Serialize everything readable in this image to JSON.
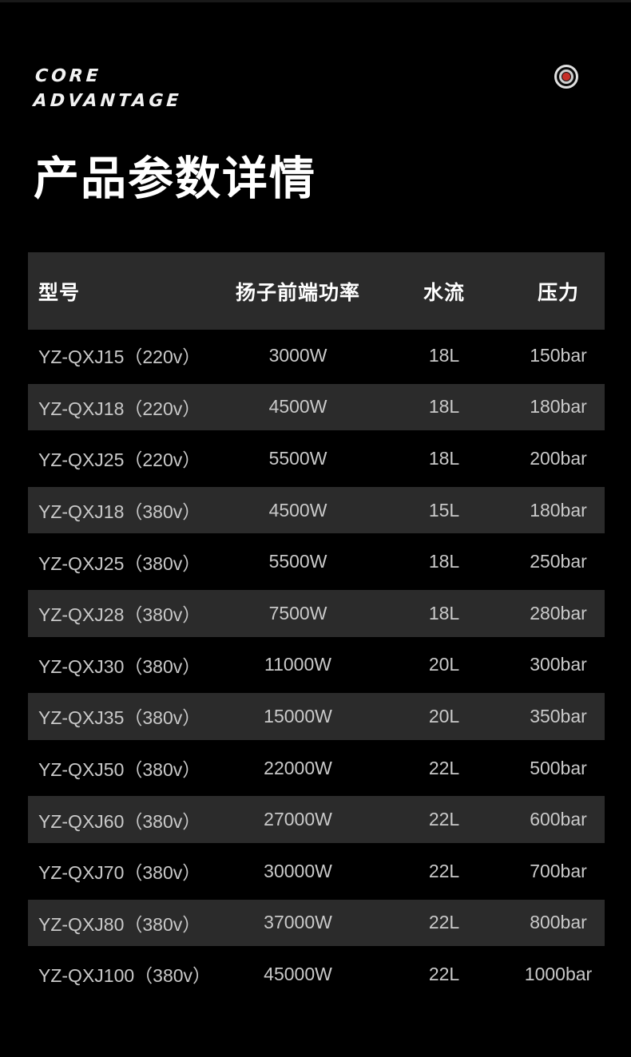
{
  "brand": {
    "line1": "CORE",
    "line2": "ADVANTAGE"
  },
  "header": {
    "title": "产品参数详情"
  },
  "icon": {
    "name": "record-lens-icon",
    "core_color": "#c62f28",
    "ring_color": "#e0e0e0"
  },
  "colors": {
    "page_bg": "#000000",
    "row_alt_bg": "#2b2b2b",
    "header_text": "#ffffff",
    "cell_text": "#c9c9c9",
    "accent_red": "#c62f28"
  },
  "table": {
    "headers": [
      "型号",
      "扬子前端功率",
      "水流",
      "压力"
    ],
    "rows": [
      [
        "YZ-QXJ15（220v）",
        "3000W",
        "18L",
        "150bar"
      ],
      [
        "YZ-QXJ18（220v）",
        "4500W",
        "18L",
        "180bar"
      ],
      [
        "YZ-QXJ25（220v）",
        "5500W",
        "18L",
        "200bar"
      ],
      [
        "YZ-QXJ18（380v）",
        "4500W",
        "15L",
        "180bar"
      ],
      [
        "YZ-QXJ25（380v）",
        "5500W",
        "18L",
        "250bar"
      ],
      [
        "YZ-QXJ28（380v）",
        "7500W",
        "18L",
        "280bar"
      ],
      [
        "YZ-QXJ30（380v）",
        "11000W",
        "20L",
        "300bar"
      ],
      [
        "YZ-QXJ35（380v）",
        "15000W",
        "20L",
        "350bar"
      ],
      [
        "YZ-QXJ50（380v）",
        "22000W",
        "22L",
        "500bar"
      ],
      [
        "YZ-QXJ60（380v）",
        "27000W",
        "22L",
        "600bar"
      ],
      [
        "YZ-QXJ70（380v）",
        "30000W",
        "22L",
        "700bar"
      ],
      [
        "YZ-QXJ80（380v）",
        "37000W",
        "22L",
        "800bar"
      ],
      [
        "YZ-QXJ100（380v）",
        "45000W",
        "22L",
        "1000bar"
      ]
    ]
  }
}
